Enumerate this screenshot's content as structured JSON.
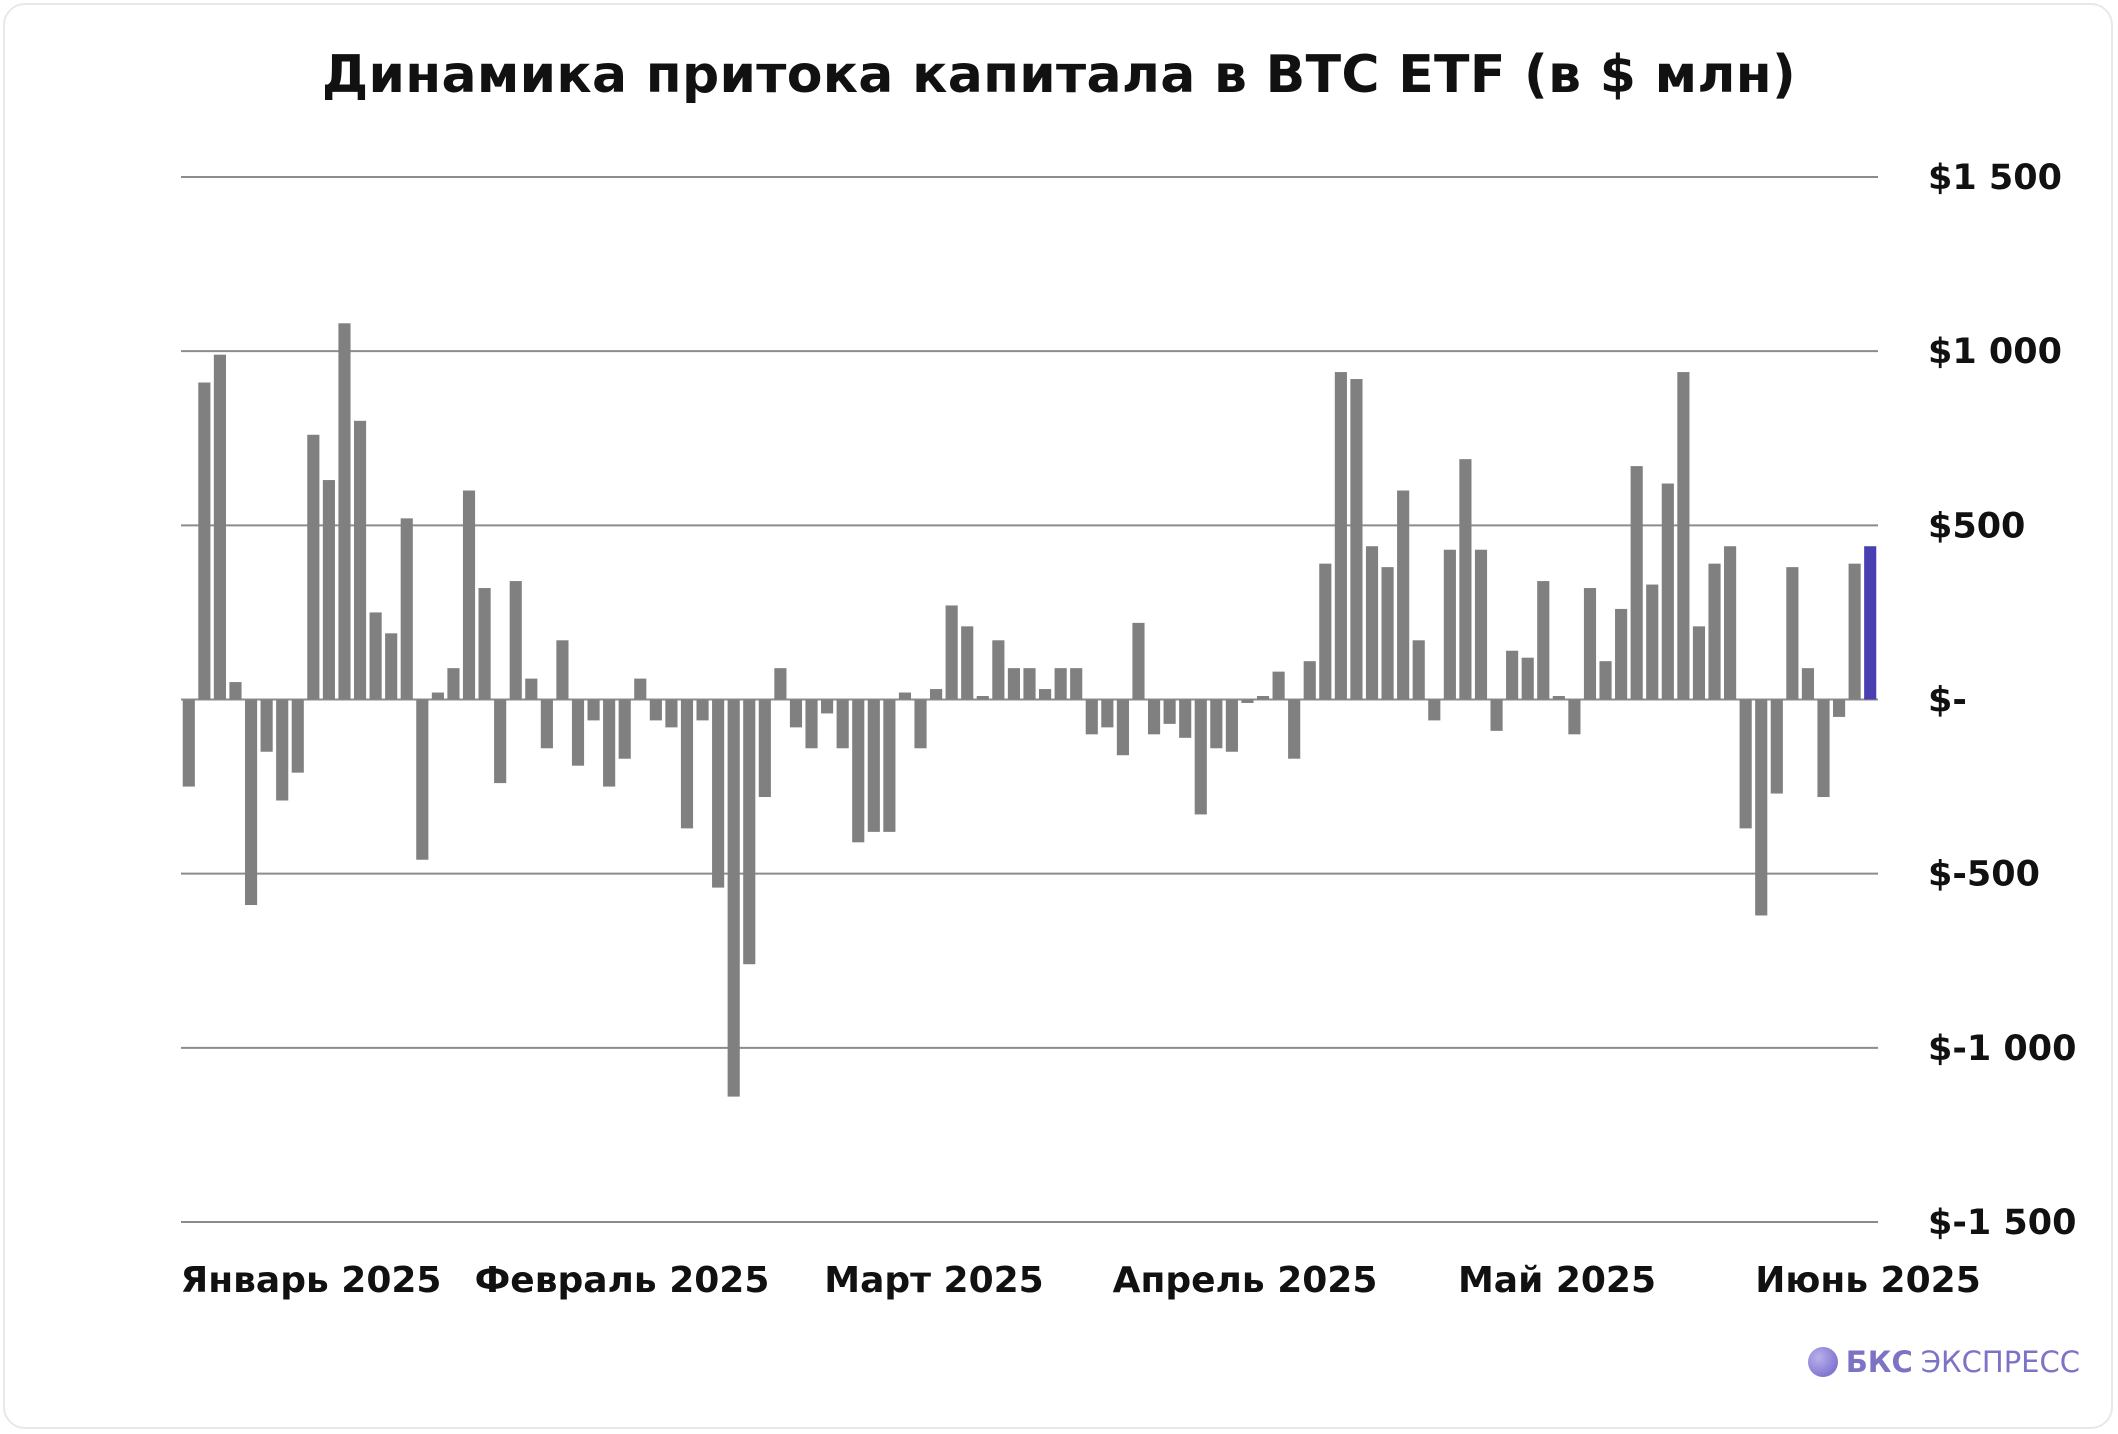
{
  "title": "Динамика притока капитала в BTC ETF (в $ млн)",
  "brand": {
    "name": "БКС",
    "suffix": "ЭКСПРЕСС"
  },
  "colors": {
    "bar": "#808080",
    "highlight": "#4a3fb0",
    "grid": "#8c8c8c"
  },
  "chart_data": {
    "type": "bar",
    "title": "Динамика притока капитала в BTC ETF (в $ млн)",
    "xlabel": "",
    "ylabel": "",
    "ylim": [
      -1500,
      1500
    ],
    "yticks": [
      1500,
      1000,
      500,
      0,
      -500,
      -1000,
      -1500
    ],
    "ytick_labels": [
      "$1 500",
      "$1 000",
      "$500",
      "$-",
      "$-500",
      "$-1 000",
      "$-1 500"
    ],
    "month_labels": [
      "Январь 2025",
      "Февраль 2025",
      "Март 2025",
      "Апрель 2025",
      "Май 2025",
      "Июнь 2025"
    ],
    "grid": true,
    "axis_side": "right",
    "highlight_last": true,
    "values": [
      -250,
      910,
      990,
      50,
      -590,
      -150,
      -290,
      -210,
      760,
      630,
      1080,
      800,
      250,
      190,
      520,
      -460,
      20,
      90,
      600,
      320,
      -240,
      340,
      60,
      -140,
      170,
      -190,
      -60,
      -250,
      -170,
      60,
      -60,
      -80,
      -370,
      -60,
      -540,
      -1140,
      -760,
      -280,
      90,
      -80,
      -140,
      -40,
      -140,
      -410,
      -380,
      -380,
      20,
      -140,
      30,
      270,
      210,
      10,
      170,
      90,
      90,
      30,
      90,
      90,
      -100,
      -80,
      -160,
      220,
      -100,
      -70,
      -110,
      -330,
      -140,
      -150,
      -10,
      10,
      80,
      -170,
      110,
      390,
      940,
      920,
      440,
      380,
      600,
      170,
      -60,
      430,
      690,
      430,
      -90,
      140,
      120,
      340,
      10,
      -100,
      320,
      110,
      260,
      670,
      330,
      620,
      940,
      210,
      390,
      440,
      -370,
      -620,
      -270,
      380,
      90,
      -280,
      -50,
      390,
      440
    ]
  }
}
